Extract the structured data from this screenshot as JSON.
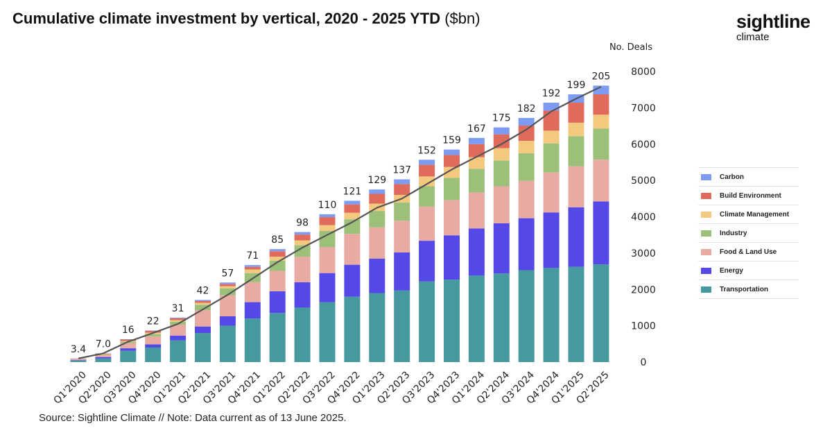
{
  "title": {
    "main": "Cumulative climate investment by vertical, 2020 - 2025 YTD",
    "unit": "($bn)"
  },
  "brand": {
    "name": "sightline",
    "sub": "climate"
  },
  "source": "Source: Sightline Climate  //  Note: Data current as of 13 June 2025.",
  "chart_data": {
    "type": "bar",
    "stacked": true,
    "categories": [
      "Q1'2020",
      "Q2'2020",
      "Q3'2020",
      "Q4'2020",
      "Q1'2021",
      "Q2'2021",
      "Q3'2021",
      "Q4'2021",
      "Q1'2022",
      "Q2'2022",
      "Q3'2022",
      "Q4'2022",
      "Q1'2023",
      "Q2'2023",
      "Q3'2023",
      "Q4'2023",
      "Q1'2024",
      "Q2'2024",
      "Q3'2024",
      "Q4'2024",
      "Q1'2025",
      "Q2'2025"
    ],
    "series": [
      {
        "name": "Transportation",
        "color": "#45999f",
        "values": [
          40,
          100,
          310,
          400,
          600,
          800,
          1000,
          1200,
          1350,
          1500,
          1650,
          1800,
          1900,
          1970,
          2220,
          2270,
          2380,
          2440,
          2530,
          2590,
          2620,
          2690
        ]
      },
      {
        "name": "Energy",
        "color": "#5449e6",
        "values": [
          15,
          40,
          70,
          90,
          130,
          180,
          260,
          450,
          600,
          700,
          800,
          880,
          950,
          1050,
          1120,
          1220,
          1300,
          1380,
          1430,
          1530,
          1640,
          1730
        ]
      },
      {
        "name": "Food & Land Use",
        "color": "#e8aba3",
        "values": [
          20,
          50,
          140,
          220,
          300,
          450,
          580,
          550,
          560,
          700,
          720,
          850,
          860,
          870,
          940,
          970,
          990,
          1020,
          1030,
          1100,
          1130,
          1150
        ]
      },
      {
        "name": "Industry",
        "color": "#9cbf7a",
        "values": [
          8,
          15,
          35,
          60,
          80,
          150,
          190,
          250,
          280,
          320,
          440,
          400,
          450,
          500,
          560,
          610,
          650,
          710,
          760,
          800,
          830,
          860
        ]
      },
      {
        "name": "Climate Management",
        "color": "#f2c97e",
        "values": [
          5,
          12,
          25,
          40,
          45,
          50,
          60,
          100,
          110,
          130,
          160,
          180,
          200,
          210,
          270,
          300,
          320,
          340,
          340,
          350,
          370,
          380
        ]
      },
      {
        "name": "Build Environment",
        "color": "#e06b5c",
        "values": [
          7,
          15,
          40,
          50,
          50,
          50,
          60,
          70,
          150,
          160,
          220,
          230,
          270,
          300,
          320,
          330,
          360,
          380,
          420,
          550,
          550,
          560
        ]
      },
      {
        "name": "Carbon",
        "color": "#7d9bf0",
        "values": [
          5,
          8,
          10,
          10,
          20,
          30,
          40,
          50,
          60,
          70,
          80,
          100,
          120,
          130,
          140,
          150,
          170,
          190,
          210,
          220,
          230,
          240
        ]
      }
    ],
    "deals": [
      3.4,
      7.0,
      16,
      22,
      31,
      42,
      57,
      71,
      85,
      98,
      110,
      121,
      129,
      137,
      152,
      159,
      167,
      175,
      182,
      192,
      199,
      205
    ],
    "deals_label": "No. Deals",
    "deal_labels": [
      "3.4",
      "7.0",
      "16",
      "22",
      "31",
      "42",
      "57",
      "71",
      "85",
      "98",
      "110",
      "121",
      "129",
      "137",
      "152",
      "159",
      "167",
      "175",
      "182",
      "192",
      "199",
      "205"
    ],
    "line": [
      100,
      240,
      560,
      800,
      1050,
      1450,
      1850,
      2300,
      2750,
      3150,
      3500,
      3850,
      4250,
      4500,
      4900,
      5300,
      5650,
      6000,
      6400,
      6900,
      7250,
      7580
    ],
    "ylim": [
      0,
      8000
    ],
    "yticks": [
      0,
      1000,
      2000,
      3000,
      4000,
      5000,
      6000,
      7000,
      8000
    ],
    "ytick_labels": [
      "0",
      "1000",
      "2000",
      "3000",
      "4000",
      "5000",
      "6000",
      "7000",
      "8000"
    ],
    "xlabel": "",
    "ylabel": "",
    "legend_position": "right"
  },
  "legend": [
    {
      "label": "Carbon",
      "color": "#7d9bf0"
    },
    {
      "label": "Build Environment",
      "color": "#e06b5c"
    },
    {
      "label": "Climate Management",
      "color": "#f2c97e"
    },
    {
      "label": "Industry",
      "color": "#9cbf7a"
    },
    {
      "label": "Food & Land Use",
      "color": "#e8aba3"
    },
    {
      "label": "Energy",
      "color": "#5449e6"
    },
    {
      "label": "Transportation",
      "color": "#45999f"
    }
  ]
}
